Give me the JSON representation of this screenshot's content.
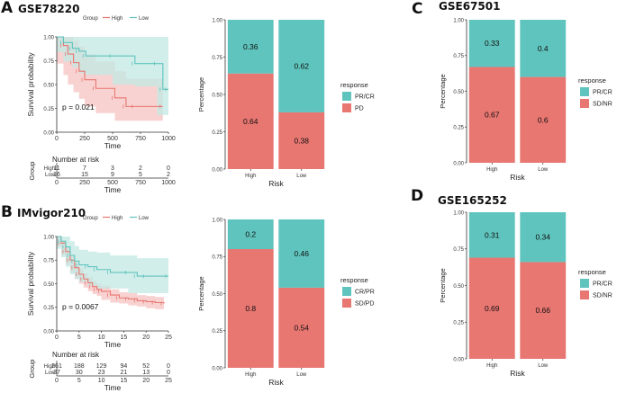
{
  "colors": {
    "high": "#e87671",
    "low": "#5fc4bd",
    "high_ci": "#f5c3c0",
    "low_ci": "#c2e8e4",
    "axis": "#333333"
  },
  "chart_data": [
    {
      "panel": "A",
      "title": "GSE78220",
      "type": "line",
      "subtype": "kaplan-meier",
      "legend_title": "Group",
      "legend": [
        "High",
        "Low"
      ],
      "xlabel": "Time",
      "ylabel": "Survival probability",
      "xlim": [
        0,
        1000
      ],
      "ylim": [
        0,
        1
      ],
      "xticks": [
        "0",
        "250",
        "500",
        "750",
        "1000"
      ],
      "yticks": [
        "0.00",
        "0.25",
        "0.50",
        "0.75",
        "1.00"
      ],
      "pvalue": "p = 0.021",
      "series": [
        {
          "name": "High",
          "x": [
            0,
            60,
            100,
            150,
            200,
            250,
            350,
            520,
            620,
            700,
            950
          ],
          "y": [
            1,
            0.91,
            0.82,
            0.73,
            0.64,
            0.55,
            0.46,
            0.36,
            0.27,
            0.27,
            0.27
          ],
          "ci_lower": [
            1,
            0.72,
            0.6,
            0.5,
            0.42,
            0.35,
            0.27,
            0.2,
            0.12,
            0.12,
            0.12
          ],
          "ci_upper": [
            1,
            1,
            1,
            0.96,
            0.9,
            0.82,
            0.74,
            0.64,
            0.56,
            0.56,
            0.56
          ]
        },
        {
          "name": "Low",
          "x": [
            0,
            60,
            140,
            200,
            260,
            500,
            700,
            900,
            950,
            1000
          ],
          "y": [
            1,
            0.94,
            0.88,
            0.85,
            0.8,
            0.8,
            0.72,
            0.72,
            0.45,
            0.45
          ],
          "ci_lower": [
            1,
            0.84,
            0.74,
            0.68,
            0.62,
            0.6,
            0.5,
            0.48,
            0.18,
            0.18
          ],
          "ci_upper": [
            1,
            1,
            1,
            1,
            1,
            1,
            1,
            1,
            1,
            1
          ]
        }
      ],
      "risk_table": {
        "title": "Number at risk",
        "ylabel": "Group",
        "rows": [
          {
            "label": "High",
            "values": [
              "11",
              "7",
              "3",
              "2",
              "0"
            ]
          },
          {
            "label": "Low",
            "values": [
              "16",
              "15",
              "9",
              "5",
              "2"
            ]
          }
        ],
        "xticks": [
          "0",
          "250",
          "500",
          "750",
          "1000"
        ],
        "xlabel": "Time"
      }
    },
    {
      "panel": "A",
      "type": "bar",
      "stacked": true,
      "categories": [
        "High",
        "Low"
      ],
      "series": [
        {
          "name": "PD",
          "values": [
            0.64,
            0.38
          ]
        },
        {
          "name": "PR/CR",
          "values": [
            0.36,
            0.62
          ]
        }
      ],
      "labels": [
        [
          "0.64",
          "0.38"
        ],
        [
          "0.36",
          "0.62"
        ]
      ],
      "legend_title": "response",
      "legend": [
        "PR/CR",
        "PD"
      ],
      "xlabel": "Risk",
      "ylabel": "Percentage",
      "ylim": [
        0,
        1
      ],
      "yticks": [
        "0.00",
        "0.25",
        "0.50",
        "0.75",
        "1.00"
      ]
    },
    {
      "panel": "B",
      "title": "IMvigor210",
      "type": "line",
      "subtype": "kaplan-meier",
      "legend_title": "Group",
      "legend": [
        "High",
        "Low"
      ],
      "xlabel": "Time",
      "ylabel": "Survival probability",
      "xlim": [
        0,
        25
      ],
      "ylim": [
        0,
        1
      ],
      "xticks": [
        "0",
        "5",
        "10",
        "15",
        "20",
        "25"
      ],
      "yticks": [
        "0.00",
        "0.25",
        "0.50",
        "0.75",
        "1.00"
      ],
      "pvalue": "p = 0.0067",
      "series": [
        {
          "name": "High",
          "x": [
            0,
            1,
            2,
            3,
            4,
            5,
            6,
            7,
            8,
            9,
            10,
            12,
            14,
            16,
            18,
            20,
            22,
            24
          ],
          "y": [
            1,
            0.93,
            0.84,
            0.75,
            0.67,
            0.6,
            0.55,
            0.51,
            0.47,
            0.44,
            0.42,
            0.38,
            0.35,
            0.34,
            0.32,
            0.31,
            0.3,
            0.29
          ],
          "ci_lower": [
            1,
            0.9,
            0.8,
            0.7,
            0.62,
            0.55,
            0.5,
            0.46,
            0.42,
            0.39,
            0.37,
            0.33,
            0.3,
            0.29,
            0.27,
            0.26,
            0.24,
            0.23
          ],
          "ci_upper": [
            1,
            0.96,
            0.88,
            0.8,
            0.72,
            0.66,
            0.61,
            0.57,
            0.53,
            0.5,
            0.48,
            0.44,
            0.41,
            0.4,
            0.38,
            0.37,
            0.36,
            0.35
          ]
        },
        {
          "name": "Low",
          "x": [
            0,
            1,
            2,
            3,
            4,
            5,
            7,
            9,
            12,
            16,
            18,
            20,
            25
          ],
          "y": [
            1,
            0.95,
            0.89,
            0.8,
            0.74,
            0.7,
            0.68,
            0.65,
            0.62,
            0.62,
            0.58,
            0.58,
            0.58
          ],
          "ci_lower": [
            1,
            0.87,
            0.78,
            0.68,
            0.6,
            0.55,
            0.52,
            0.48,
            0.45,
            0.45,
            0.4,
            0.4,
            0.4
          ],
          "ci_upper": [
            1,
            1,
            1,
            0.95,
            0.9,
            0.86,
            0.84,
            0.83,
            0.8,
            0.8,
            0.77,
            0.77,
            0.77
          ]
        }
      ],
      "risk_table": {
        "title": "Number at risk",
        "ylabel": "Group",
        "rows": [
          {
            "label": "High",
            "values": [
              "261",
              "188",
              "129",
              "94",
              "52",
              "0"
            ]
          },
          {
            "label": "Low",
            "values": [
              "37",
              "30",
              "23",
              "21",
              "13",
              "0"
            ]
          }
        ],
        "xticks": [
          "0",
          "5",
          "10",
          "15",
          "20",
          "25"
        ],
        "xlabel": "Time"
      }
    },
    {
      "panel": "B",
      "type": "bar",
      "stacked": true,
      "categories": [
        "High",
        "Low"
      ],
      "series": [
        {
          "name": "SD/PD",
          "values": [
            0.8,
            0.54
          ]
        },
        {
          "name": "CR/PR",
          "values": [
            0.2,
            0.46
          ]
        }
      ],
      "labels": [
        [
          "0.8",
          "0.54"
        ],
        [
          "0.2",
          "0.46"
        ]
      ],
      "legend_title": "response",
      "legend": [
        "CR/PR",
        "SD/PD"
      ],
      "xlabel": "Risk",
      "ylabel": "Percentage",
      "ylim": [
        0,
        1
      ],
      "yticks": [
        "0.00",
        "0.25",
        "0.50",
        "0.75",
        "1.00"
      ]
    },
    {
      "panel": "C",
      "title": "GSE67501",
      "type": "bar",
      "stacked": true,
      "categories": [
        "High",
        "Low"
      ],
      "series": [
        {
          "name": "SD/NR",
          "values": [
            0.67,
            0.6
          ]
        },
        {
          "name": "PR/CR",
          "values": [
            0.33,
            0.4
          ]
        }
      ],
      "labels": [
        [
          "0.67",
          "0.6"
        ],
        [
          "0.33",
          "0.4"
        ]
      ],
      "legend_title": "response",
      "legend": [
        "PR/CR",
        "SD/NR"
      ],
      "xlabel": "Risk",
      "ylabel": "Percentage",
      "ylim": [
        0,
        1
      ],
      "yticks": [
        "0.00",
        "0.25",
        "0.50",
        "0.75",
        "1.00"
      ]
    },
    {
      "panel": "D",
      "title": "GSE165252",
      "type": "bar",
      "stacked": true,
      "categories": [
        "High",
        "Low"
      ],
      "series": [
        {
          "name": "SD/NR",
          "values": [
            0.69,
            0.66
          ]
        },
        {
          "name": "PR/CR",
          "values": [
            0.31,
            0.34
          ]
        }
      ],
      "labels": [
        [
          "0.69",
          "0.66"
        ],
        [
          "0.31",
          "0.34"
        ]
      ],
      "legend_title": "response",
      "legend": [
        "PR/CR",
        "SD/NR"
      ],
      "xlabel": "Risk",
      "ylabel": "Percentage",
      "ylim": [
        0,
        1
      ],
      "yticks": [
        "0.00",
        "0.25",
        "0.50",
        "0.75",
        "1.00"
      ]
    }
  ]
}
